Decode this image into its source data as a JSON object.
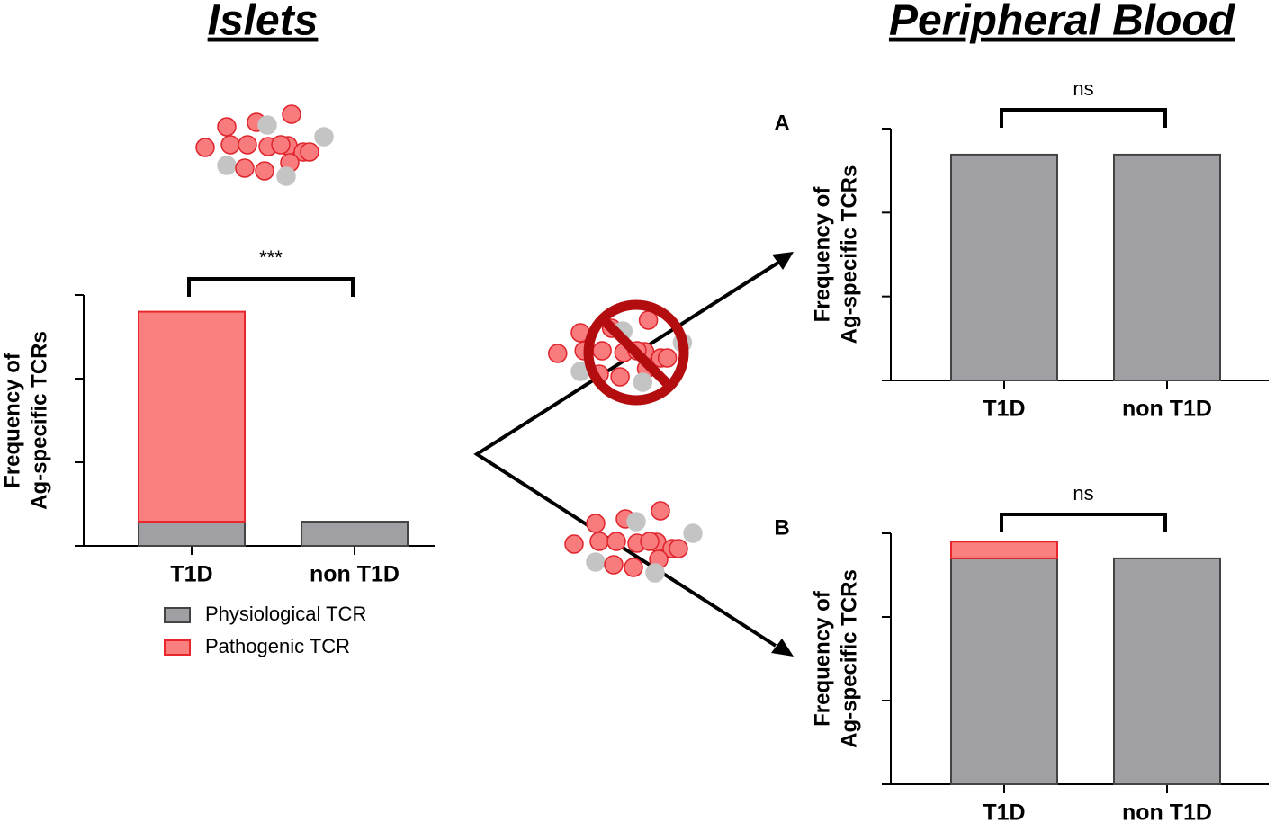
{
  "titles": {
    "left": "Islets",
    "right": "Peripheral Blood"
  },
  "chart_data": [
    {
      "type": "bar",
      "stacked": true,
      "significance": "***",
      "y_label": [
        "Frequency of",
        "Ag-specific TCRs"
      ],
      "categories": [
        "T1D",
        "non T1D"
      ],
      "series": [
        {
          "name": "Physiological TCR",
          "color": "#a09fa4",
          "edge": "#444444",
          "values": [
            0.29,
            0.29
          ]
        },
        {
          "name": "Pathogenic TCR",
          "color": "#fa8080",
          "edge": "#e8262c",
          "values": [
            2.51,
            0
          ]
        }
      ],
      "ylim": [
        0,
        3
      ],
      "yticks": [
        0,
        1,
        2,
        3
      ],
      "legend": "bottom"
    },
    {
      "type": "bar",
      "stacked": true,
      "panel_label": "A",
      "significance": "ns",
      "y_label": [
        "Frequency of",
        "Ag-specific TCRs"
      ],
      "categories": [
        "T1D",
        "non T1D"
      ],
      "series": [
        {
          "color": "#a09fa4",
          "edge": "#444444",
          "values": [
            2.69,
            2.69
          ]
        },
        {
          "color": "#fa8080",
          "edge": "#e8262c",
          "values": [
            0,
            0
          ]
        }
      ],
      "ylim": [
        0,
        3
      ],
      "yticks": [
        0,
        1,
        2,
        3
      ]
    },
    {
      "type": "bar",
      "stacked": true,
      "panel_label": "B",
      "significance": "ns",
      "y_label": [
        "Frequency of",
        "Ag-specific TCRs"
      ],
      "categories": [
        "T1D",
        "non T1D"
      ],
      "series": [
        {
          "color": "#a09fa4",
          "edge": "#444444",
          "values": [
            2.7,
            2.7
          ]
        },
        {
          "color": "#fa8080",
          "edge": "#e8262c",
          "values": [
            0.2,
            0
          ]
        }
      ],
      "ylim": [
        0,
        3
      ],
      "yticks": [
        0,
        1,
        2,
        3
      ]
    }
  ]
}
